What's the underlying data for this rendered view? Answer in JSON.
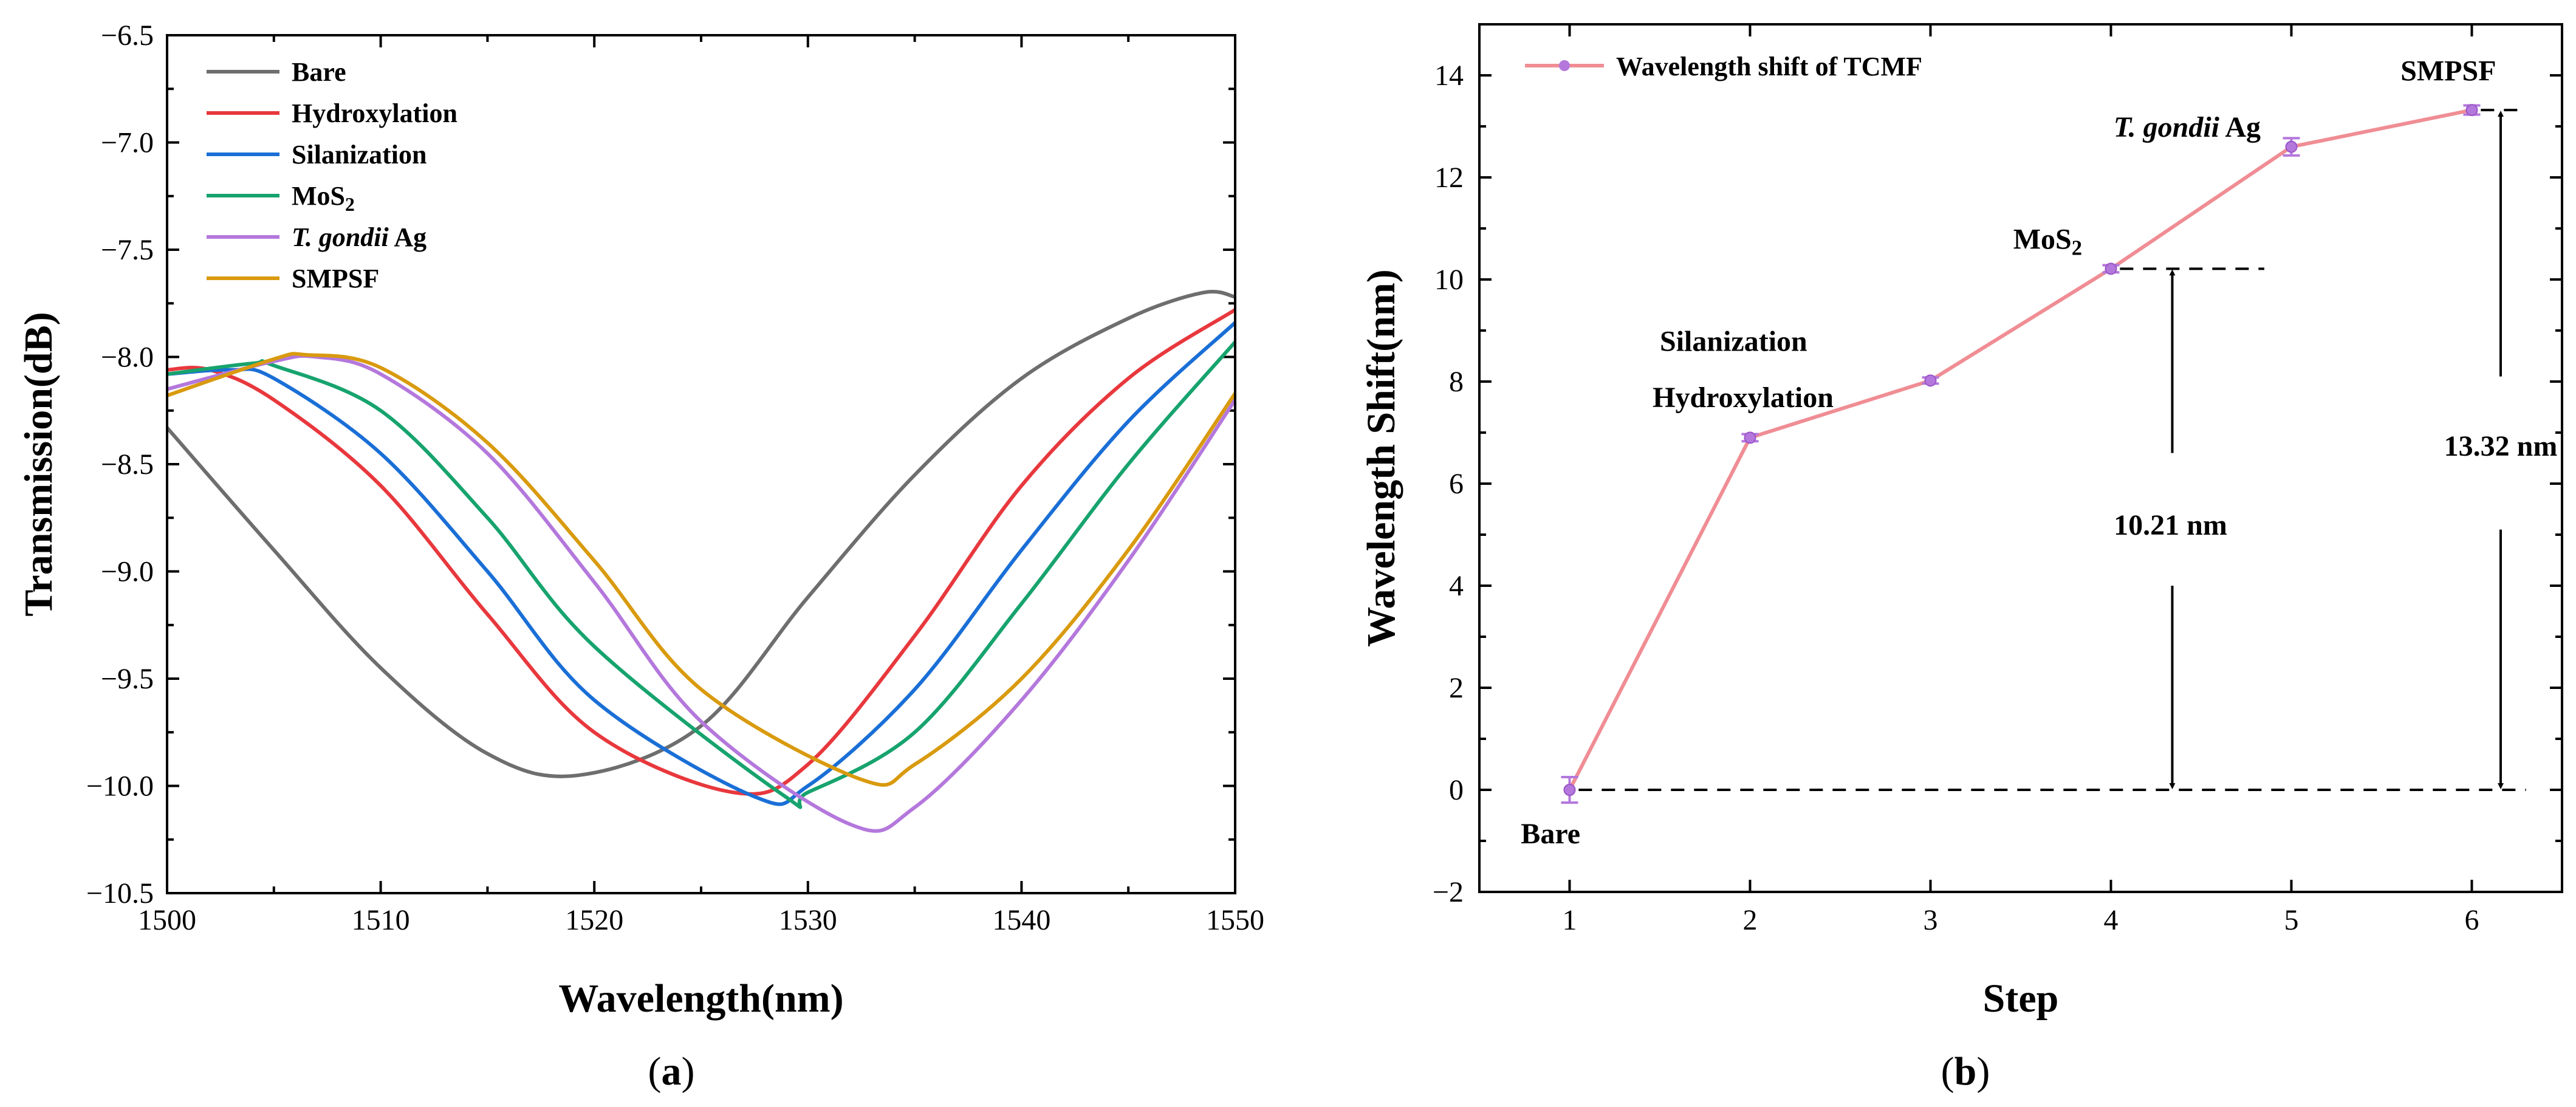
{
  "chart_data": [
    {
      "type": "line",
      "panel": "a",
      "caption_letter": "a",
      "xlabel": "Wavelength(nm)",
      "ylabel": "Transmission(dB)",
      "xlim": [
        1500,
        1550
      ],
      "ylim": [
        -10.5,
        -6.5
      ],
      "xticks": [
        "1500",
        "1510",
        "1520",
        "1530",
        "1540",
        "1550"
      ],
      "yticks": [
        "-6.5",
        "-7.0",
        "-7.5",
        "-8.0",
        "-8.5",
        "-9.0",
        "-9.5",
        "-10.0",
        "-10.5"
      ],
      "legend_position": "top-left",
      "series": [
        {
          "name": "Bare",
          "color": "#6e6e6e",
          "x": [
            1500,
            1505,
            1510,
            1515,
            1519.3,
            1525,
            1530,
            1535,
            1540,
            1545,
            1548.5,
            1550
          ],
          "y": [
            -8.33,
            -8.9,
            -9.45,
            -9.85,
            -9.95,
            -9.72,
            -9.12,
            -8.55,
            -8.1,
            -7.82,
            -7.7,
            -7.72
          ]
        },
        {
          "name": "Hydroxylation",
          "color": "#e8383d",
          "x": [
            1500,
            1502,
            1505,
            1510,
            1515,
            1520,
            1526.5,
            1530,
            1535,
            1540,
            1545,
            1550
          ],
          "y": [
            -8.06,
            -8.06,
            -8.2,
            -8.6,
            -9.2,
            -9.75,
            -10.03,
            -9.9,
            -9.3,
            -8.6,
            -8.1,
            -7.78
          ]
        },
        {
          "name": "Silanization",
          "color": "#1a6fd6",
          "x": [
            1500,
            1503,
            1505,
            1510,
            1515,
            1520,
            1527.5,
            1530,
            1535,
            1540,
            1545,
            1550
          ],
          "y": [
            -8.08,
            -8.06,
            -8.1,
            -8.45,
            -9.0,
            -9.6,
            -10.05,
            -10.0,
            -9.55,
            -8.9,
            -8.3,
            -7.84
          ]
        },
        {
          "name": "MoS2",
          "color": "#17a36e",
          "x": [
            1500,
            1504,
            1505,
            1510,
            1515,
            1520,
            1528.8,
            1530,
            1535,
            1540,
            1545,
            1550
          ],
          "y": [
            -8.08,
            -8.03,
            -8.04,
            -8.25,
            -8.75,
            -9.35,
            -10.04,
            -10.03,
            -9.75,
            -9.15,
            -8.5,
            -7.93
          ]
        },
        {
          "name": "T. gondii Ag",
          "color": "#b478dc",
          "x": [
            1500,
            1505,
            1507,
            1510,
            1515,
            1520,
            1525,
            1532,
            1535,
            1540,
            1545,
            1550
          ],
          "y": [
            -8.15,
            -8.02,
            -8.0,
            -8.08,
            -8.45,
            -9.05,
            -9.7,
            -10.18,
            -10.1,
            -9.6,
            -8.95,
            -8.2
          ]
        },
        {
          "name": "SMPSF",
          "color": "#d99a0e",
          "x": [
            1500,
            1505,
            1506.5,
            1510,
            1515,
            1520,
            1525,
            1532.5,
            1535,
            1540,
            1545,
            1550
          ],
          "y": [
            -8.18,
            -8.01,
            -7.99,
            -8.05,
            -8.4,
            -8.95,
            -9.55,
            -9.97,
            -9.9,
            -9.5,
            -8.9,
            -8.17
          ]
        }
      ]
    },
    {
      "type": "line",
      "panel": "b",
      "caption_letter": "b",
      "xlabel": "Step",
      "ylabel": "Wavelength Shift(nm)",
      "xlim": [
        0.5,
        6.5
      ],
      "ylim": [
        -2,
        15
      ],
      "xticks": [
        "1",
        "2",
        "3",
        "4",
        "5",
        "6"
      ],
      "yticks": [
        "-2",
        "0",
        "2",
        "4",
        "6",
        "8",
        "10",
        "12",
        "14"
      ],
      "legend_position": "top-left",
      "series": [
        {
          "name": "Wavelength shift of TCMF",
          "color": "#f08d94",
          "marker_color": "#b478dc",
          "x": [
            1,
            2,
            3,
            4,
            5,
            6
          ],
          "y": [
            0,
            6.9,
            8.02,
            10.21,
            12.6,
            13.32
          ],
          "error": [
            0.25,
            0.07,
            0.06,
            0.07,
            0.17,
            0.09
          ]
        }
      ],
      "point_labels": [
        "Bare",
        "Hydroxylation",
        "Silanization",
        "MoS2",
        "T. gondii Ag",
        "SMPSF"
      ],
      "annotations": [
        "10.21 nm",
        "13.32 nm"
      ]
    }
  ]
}
